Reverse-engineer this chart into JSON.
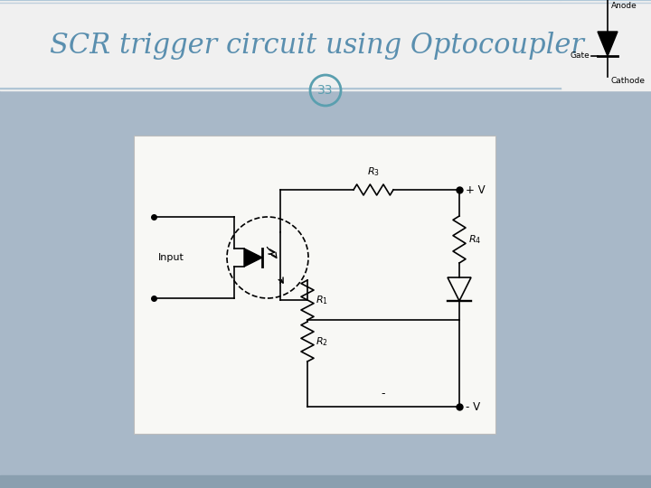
{
  "title": "SCR trigger circuit using Optocoupler",
  "slide_number": "33",
  "bg_color": "#a8b8c8",
  "title_bg_color": "#f0f0f0",
  "title_color": "#5a8faf",
  "circuit_bg_color": "#f8f8f5",
  "bottom_bar_color": "#8a9faf",
  "scr_anode": "Anode",
  "scr_gate": "Gate",
  "scr_cathode": "Cathode",
  "input_label": "Input",
  "plus_v": "+ V",
  "minus_v": "- V",
  "r1": "$R_1$",
  "r2": "$R_2$",
  "r3": "$R_3$",
  "r4": "$R_4$"
}
